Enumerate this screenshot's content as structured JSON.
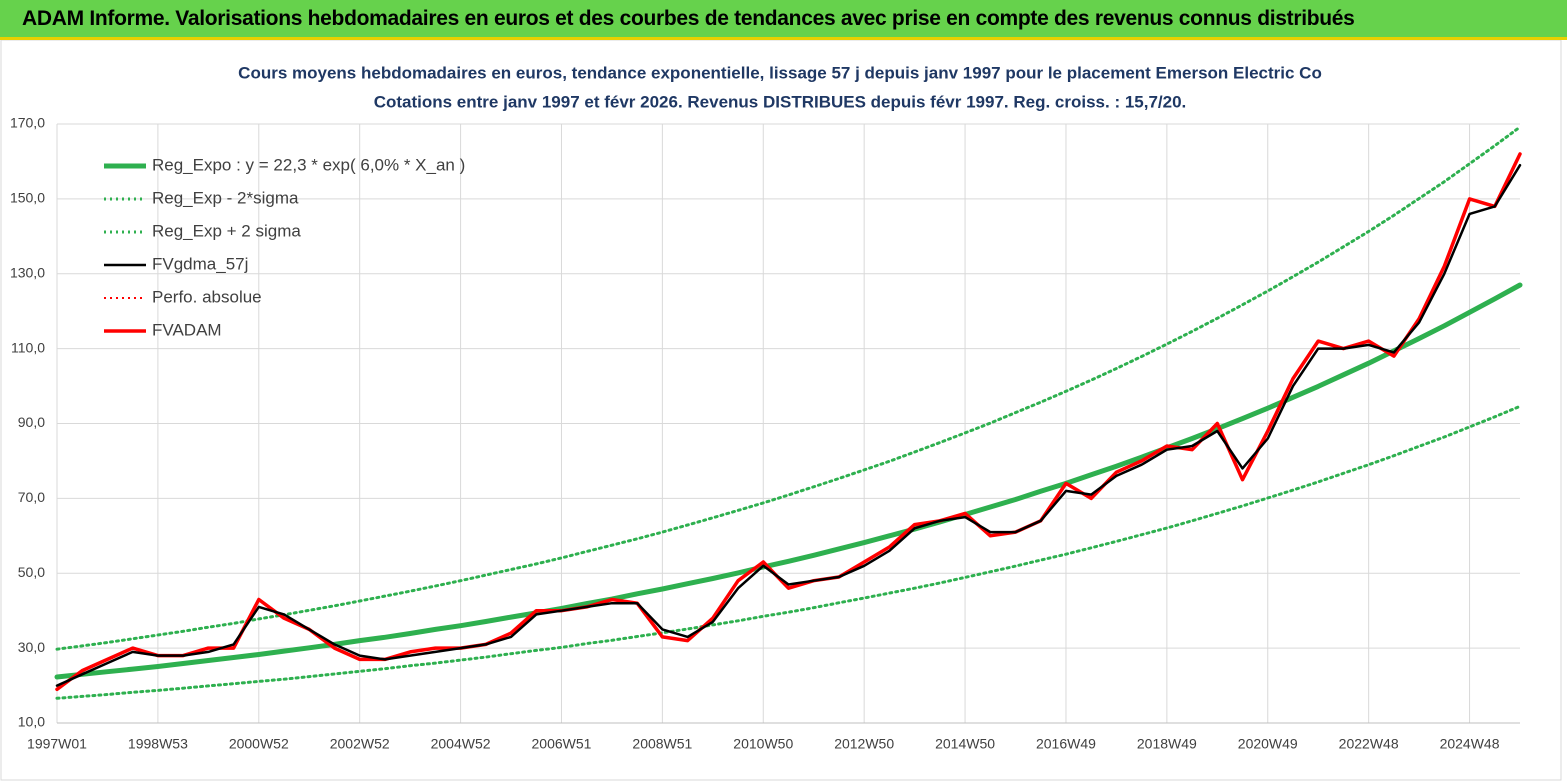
{
  "header": {
    "title": "ADAM Informe. Valorisations hebdomadaires en euros et des courbes de tendances avec prise en compte des revenus connus distribués"
  },
  "chart_data": {
    "type": "line",
    "title": "Cours moyens hebdomadaires en euros, tendance exponentielle, lissage 57 j depuis janv 1997 pour le placement Emerson Electric Co",
    "subtitle": "Cotations entre janv 1997 et févr 2026. Revenus DISTRIBUES depuis févr 1997. Reg. croiss. : 15,7/20.",
    "categories": [
      "1997W01",
      null,
      null,
      null,
      "1998W53",
      null,
      null,
      null,
      "2000W52",
      null,
      null,
      null,
      "2002W52",
      null,
      null,
      null,
      "2004W52",
      null,
      null,
      null,
      "2006W51",
      null,
      null,
      null,
      "2008W51",
      null,
      null,
      null,
      "2010W50",
      null,
      null,
      null,
      "2012W50",
      null,
      null,
      null,
      "2014W50",
      null,
      null,
      null,
      "2016W49",
      null,
      null,
      null,
      "2018W49",
      null,
      null,
      null,
      "2020W49",
      null,
      null,
      null,
      "2022W48",
      null,
      null,
      null,
      "2024W48",
      null,
      null
    ],
    "series": [
      {
        "name": "Reg_Expo : y = 22,3 * exp( 6,0% *  X_an )",
        "color": "#2eb04f",
        "style": "solid",
        "width": 5,
        "values": [
          22.3,
          23.0,
          23.7,
          24.4,
          25.1,
          25.9,
          26.7,
          27.5,
          28.3,
          29.2,
          30.1,
          31.0,
          32.0,
          32.9,
          33.9,
          35.0,
          36.0,
          37.1,
          38.3,
          39.4,
          40.6,
          41.9,
          43.1,
          44.5,
          45.8,
          47.2,
          48.6,
          50.1,
          51.7,
          53.2,
          54.8,
          56.5,
          58.2,
          60.0,
          61.8,
          63.7,
          65.7,
          67.7,
          69.7,
          71.9,
          74.0,
          76.3,
          78.6,
          81.0,
          83.5,
          86.0,
          88.6,
          91.3,
          94.1,
          97.0,
          99.9,
          103.0,
          106.1,
          109.4,
          112.7,
          116.1,
          119.7,
          123.3,
          127.0
        ]
      },
      {
        "name": "Reg_Exp - 2*sigma",
        "color": "#2eb04f",
        "style": "dotted",
        "width": 3,
        "values": [
          16.6,
          17.1,
          17.6,
          18.2,
          18.7,
          19.3,
          19.9,
          20.5,
          21.1,
          21.7,
          22.4,
          23.1,
          23.8,
          24.5,
          25.3,
          26.0,
          26.8,
          27.6,
          28.5,
          29.4,
          30.2,
          31.2,
          32.1,
          33.1,
          34.1,
          35.1,
          36.2,
          37.3,
          38.5,
          39.6,
          40.8,
          42.1,
          43.4,
          44.7,
          46.0,
          47.4,
          48.9,
          50.4,
          51.9,
          53.5,
          55.1,
          56.8,
          58.5,
          60.3,
          62.1,
          64.0,
          66.0,
          68.0,
          70.1,
          72.2,
          74.4,
          76.7,
          79.0,
          81.4,
          83.9,
          86.4,
          89.1,
          91.8,
          94.6
        ]
      },
      {
        "name": "Reg_Exp + 2 sigma",
        "color": "#2eb04f",
        "style": "dotted",
        "width": 3,
        "values": [
          29.7,
          30.6,
          31.5,
          32.5,
          33.5,
          34.5,
          35.6,
          36.6,
          37.8,
          38.9,
          40.1,
          41.3,
          42.6,
          43.9,
          45.2,
          46.6,
          48.0,
          49.5,
          51.0,
          52.5,
          54.1,
          55.8,
          57.5,
          59.2,
          61.0,
          62.9,
          64.8,
          66.8,
          68.8,
          70.9,
          73.1,
          75.3,
          77.6,
          79.9,
          82.4,
          84.9,
          87.5,
          90.1,
          92.9,
          95.7,
          98.6,
          101.6,
          104.7,
          107.9,
          111.2,
          114.6,
          118.1,
          121.7,
          125.4,
          129.2,
          133.1,
          137.2,
          141.3,
          145.6,
          150.1,
          154.6,
          159.4,
          164.2,
          169.2
        ]
      },
      {
        "name": "FVgdma_57j",
        "color": "#000000",
        "style": "solid",
        "width": 2.5,
        "values": [
          20,
          23,
          26,
          29,
          28,
          28,
          29,
          31,
          41,
          39,
          35,
          31,
          28,
          27,
          28,
          29,
          30,
          31,
          33,
          39,
          40,
          41,
          42,
          42,
          35,
          33,
          37,
          46,
          52,
          47,
          48,
          49,
          52,
          56,
          62,
          64,
          65,
          61,
          61,
          64,
          72,
          71,
          76,
          79,
          83,
          84,
          88,
          78,
          86,
          100,
          110,
          110,
          111,
          109,
          117,
          130,
          146,
          148,
          159
        ]
      },
      {
        "name": "Perfo. absolue",
        "color": "#ff0000",
        "style": "dotted",
        "width": 2,
        "values": [
          19,
          24,
          27,
          30,
          28,
          28,
          30,
          30,
          43,
          38,
          35,
          30,
          27,
          27,
          29,
          30,
          30,
          31,
          34,
          40,
          40,
          41,
          43,
          42,
          33,
          32,
          38,
          48,
          53,
          46,
          48,
          49,
          53,
          57,
          63,
          64,
          66,
          60,
          61,
          64,
          74,
          70,
          77,
          80,
          84,
          83,
          90,
          75,
          88,
          102,
          112,
          110,
          112,
          108,
          118,
          132,
          150,
          148,
          162
        ]
      },
      {
        "name": "FVADAM",
        "color": "#ff0000",
        "style": "solid",
        "width": 3.5,
        "values": [
          19,
          24,
          27,
          30,
          28,
          28,
          30,
          30,
          43,
          38,
          35,
          30,
          27,
          27,
          29,
          30,
          30,
          31,
          34,
          40,
          40,
          41,
          43,
          42,
          33,
          32,
          38,
          48,
          53,
          46,
          48,
          49,
          53,
          57,
          63,
          64,
          66,
          60,
          61,
          64,
          74,
          70,
          77,
          80,
          84,
          83,
          90,
          75,
          88,
          102,
          112,
          110,
          112,
          108,
          118,
          132,
          150,
          148,
          162
        ]
      }
    ],
    "ylim": [
      10,
      170
    ],
    "yticks": [
      {
        "value": 10,
        "label": "10,0"
      },
      {
        "value": 30,
        "label": "30,0"
      },
      {
        "value": 50,
        "label": "50,0"
      },
      {
        "value": 70,
        "label": "70,0"
      },
      {
        "value": 90,
        "label": "90,0"
      },
      {
        "value": 110,
        "label": "110,0"
      },
      {
        "value": 130,
        "label": "130,0"
      },
      {
        "value": 150,
        "label": "150,0"
      },
      {
        "value": 170,
        "label": "170,0"
      }
    ],
    "grid": true,
    "legend": "top-left"
  }
}
